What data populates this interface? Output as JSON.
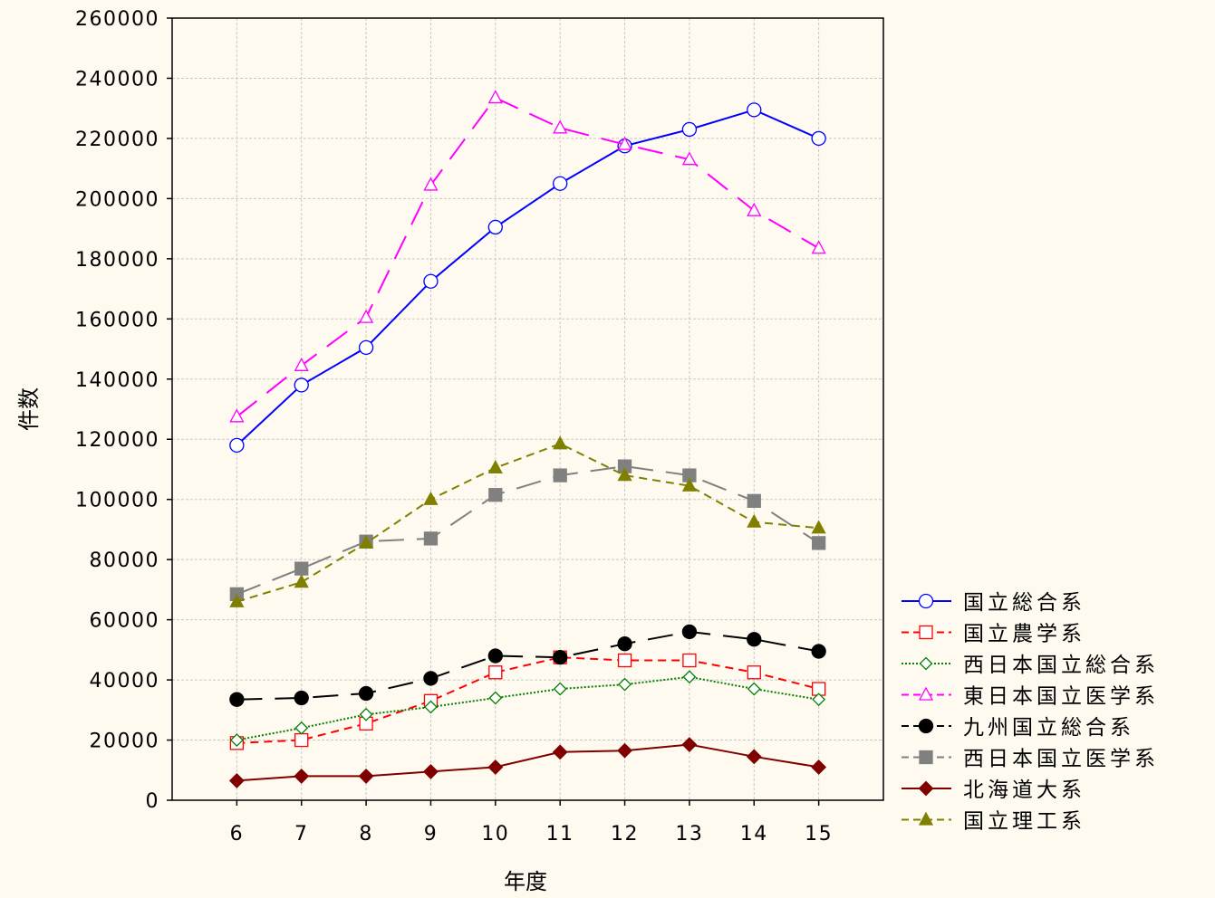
{
  "chart_data": {
    "type": "line",
    "xlabel": "年度",
    "ylabel": "件数",
    "x": [
      6,
      7,
      8,
      9,
      10,
      11,
      12,
      13,
      14,
      15
    ],
    "x_tick_labels": [
      "6",
      "7",
      "8",
      "9",
      "10",
      "11",
      "12",
      "13",
      "14",
      "15"
    ],
    "xlim": [
      5,
      16
    ],
    "ylim": [
      0,
      260000
    ],
    "y_ticks": [
      0,
      20000,
      40000,
      60000,
      80000,
      100000,
      120000,
      140000,
      160000,
      180000,
      200000,
      220000,
      240000,
      260000
    ],
    "grid": true,
    "legend_position": "bottom-right",
    "series": [
      {
        "name": "国立総合系",
        "color": "#0000ff",
        "dash": "solid",
        "marker": "circle-open",
        "values": [
          118000,
          138000,
          150500,
          172500,
          190500,
          205000,
          217500,
          223000,
          229500,
          220000
        ]
      },
      {
        "name": "国立農学系",
        "color": "#ff0000",
        "dash": "dashed",
        "marker": "square-open",
        "values": [
          19000,
          20000,
          25500,
          33000,
          42500,
          47500,
          46500,
          46500,
          42500,
          37000
        ]
      },
      {
        "name": "西日本国立総合系",
        "color": "#008000",
        "dash": "dotted",
        "marker": "diamond-open",
        "values": [
          20000,
          24000,
          28500,
          31000,
          34000,
          37000,
          38500,
          41000,
          37000,
          33500
        ]
      },
      {
        "name": "東日本国立医学系",
        "color": "#ff00ff",
        "dash": "longdash",
        "marker": "triangle-open",
        "values": [
          127500,
          144500,
          160500,
          204500,
          233500,
          223500,
          218000,
          213000,
          196000,
          183500
        ]
      },
      {
        "name": "九州国立総合系",
        "color": "#000000",
        "dash": "longdash",
        "marker": "circle-filled",
        "values": [
          33500,
          34000,
          35500,
          40500,
          48000,
          47500,
          52000,
          56000,
          53500,
          49500
        ]
      },
      {
        "name": "西日本国立医学系",
        "color": "#808080",
        "dash": "longdash",
        "marker": "square-filled",
        "values": [
          68500,
          77000,
          86000,
          87000,
          101500,
          108000,
          111000,
          108000,
          99500,
          85500
        ]
      },
      {
        "name": "北海道大系",
        "color": "#800000",
        "dash": "solid",
        "marker": "diamond-filled",
        "values": [
          6500,
          8000,
          8000,
          9500,
          11000,
          16000,
          16500,
          18500,
          14500,
          11000
        ]
      },
      {
        "name": "国立理工系",
        "color": "#808000",
        "dash": "dashed",
        "marker": "triangle-filled",
        "values": [
          66000,
          72500,
          85500,
          100000,
          110500,
          118500,
          108000,
          104500,
          92500,
          90500
        ]
      }
    ]
  }
}
